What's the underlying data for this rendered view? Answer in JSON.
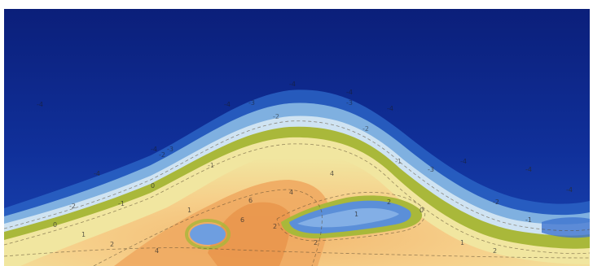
{
  "figure": {
    "colors": {
      "top": "#0b1f7a",
      "upper_mid": "#10309a",
      "mid_blue": "#2a63c4",
      "light_blue": "#7fb0e0",
      "pale_blue": "#cfe3f2",
      "green_band": "#a9b83a",
      "pale_yellow": "#f1e6a0",
      "light_orange": "#f6cf8a",
      "orange": "#efaa62",
      "deep_orange": "#e8944a",
      "inclusion_blue": "#6e9ee0"
    },
    "contour_labels": [
      "-4",
      "-4",
      "-4",
      "-4",
      "-4",
      "-4",
      "-4",
      "-4",
      "-4",
      "-4",
      "-3",
      "-3",
      "-3",
      "-3",
      "-2",
      "-2",
      "-2",
      "-2",
      "-2",
      "-1",
      "-1",
      "-1",
      "-1",
      "0",
      "0",
      "0",
      "1",
      "1",
      "1",
      "1",
      "2",
      "2",
      "2",
      "2",
      "2",
      "4",
      "4",
      "4",
      "6",
      "6"
    ]
  }
}
